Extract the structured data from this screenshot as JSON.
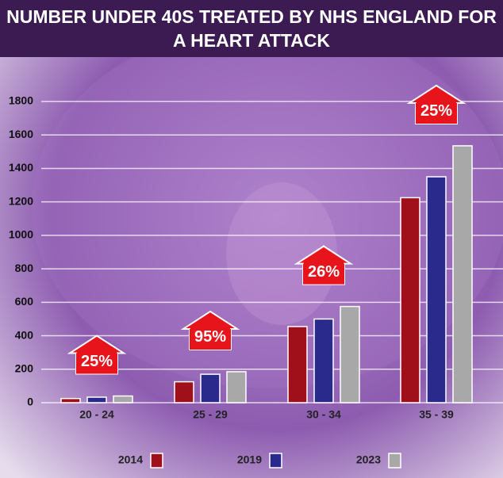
{
  "chart_data": {
    "type": "bar",
    "title": "NUMBER UNDER 40S TREATED BY NHS ENGLAND FOR A HEART ATTACK",
    "categories": [
      "20 - 24",
      "25 - 29",
      "30 - 34",
      "35 - 39"
    ],
    "series": [
      {
        "name": "2014",
        "color": "#a0101a",
        "values": [
          25,
          125,
          455,
          1225
        ]
      },
      {
        "name": "2019",
        "color": "#2a2a8c",
        "values": [
          33,
          170,
          500,
          1350
        ]
      },
      {
        "name": "2023",
        "color": "#a8a8a8",
        "values": [
          40,
          185,
          575,
          1535
        ]
      }
    ],
    "annotations": [
      "25%",
      "95%",
      "26%",
      "25%"
    ],
    "ylim": [
      0,
      1800
    ],
    "yticks": [
      0,
      200,
      400,
      600,
      800,
      1000,
      1200,
      1400,
      1600,
      1800
    ],
    "grid": true,
    "legend": "bottom"
  }
}
